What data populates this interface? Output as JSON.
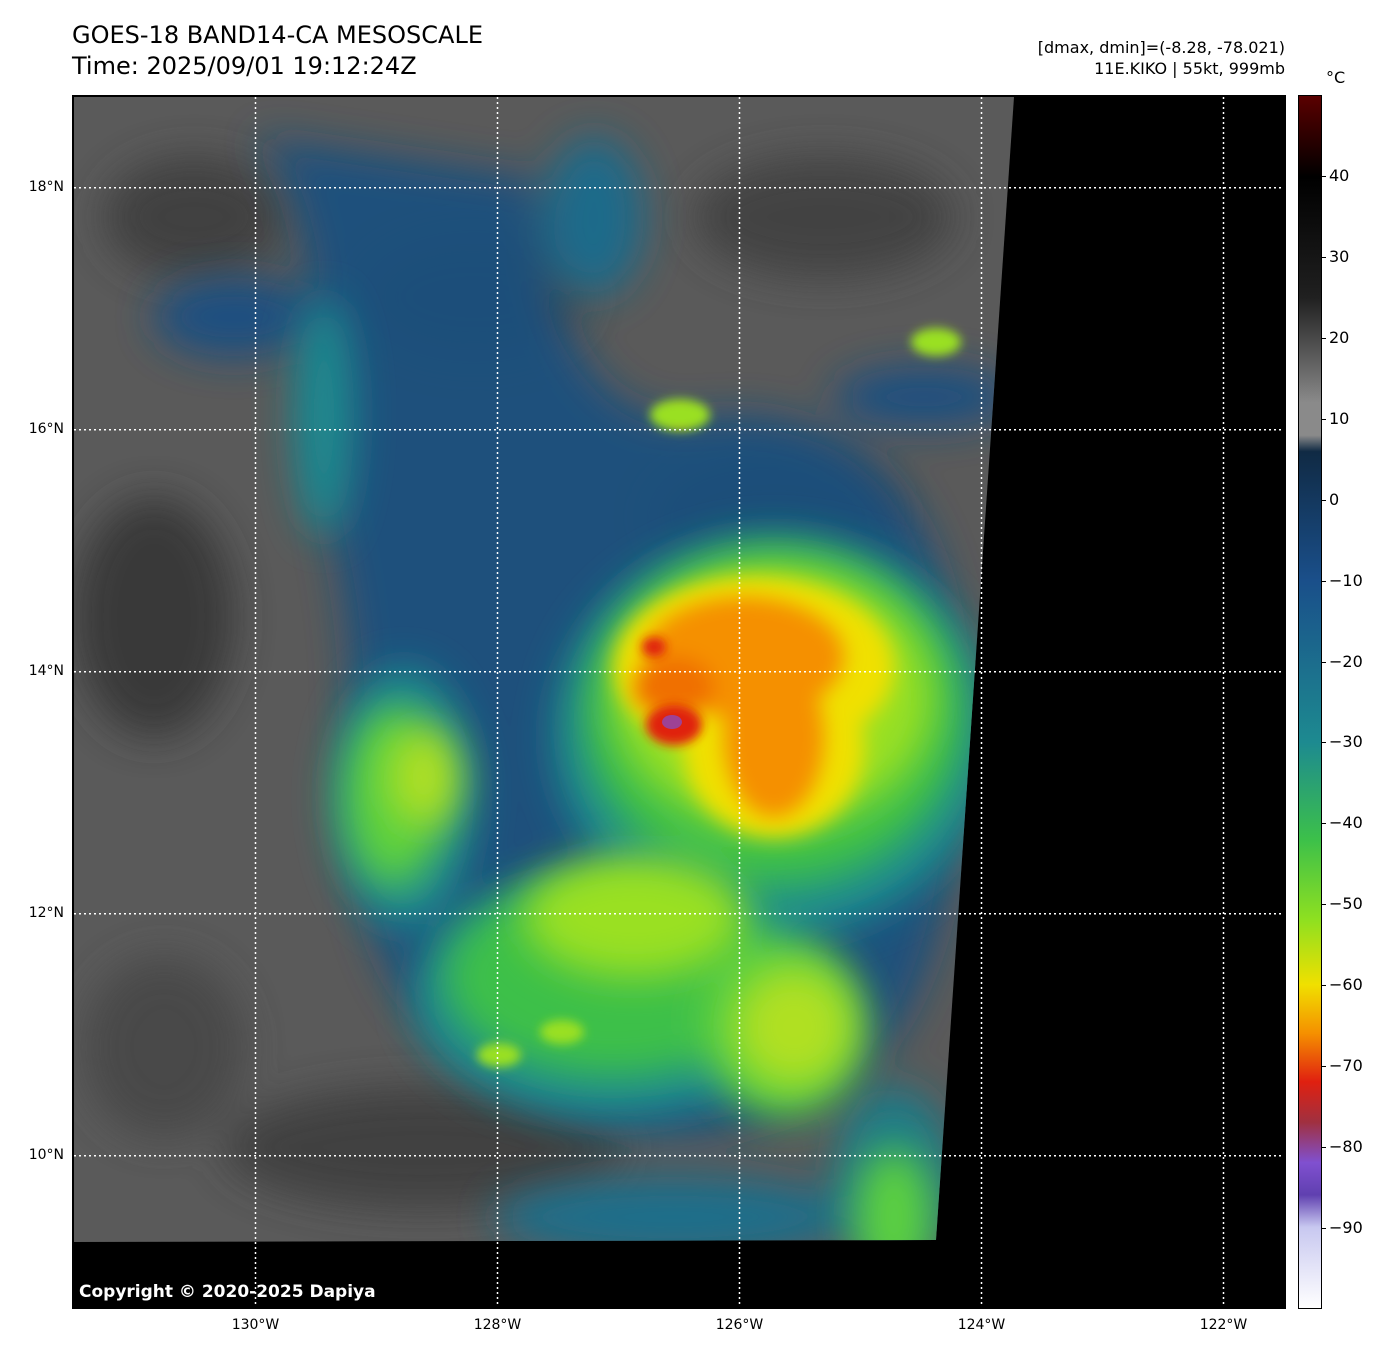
{
  "header": {
    "title_line1": "GOES-18 BAND14-CA MESOSCALE",
    "title_line2": "Time: 2025/09/01 19:12:24Z",
    "dmax_dmin": "[dmax, dmin]=(-8.28, -78.021)",
    "storm_info": "11E.KIKO | 55kt, 999mb"
  },
  "map": {
    "lat_range": [
      8.75,
      18.75
    ],
    "lon_range": [
      -131.5,
      -121.5
    ],
    "copyright": "Copyright © 2020-2025 Dapiya",
    "lat_labels": [
      {
        "value": 18,
        "text": "18°N"
      },
      {
        "value": 16,
        "text": "16°N"
      },
      {
        "value": 14,
        "text": "14°N"
      },
      {
        "value": 12,
        "text": "12°N"
      },
      {
        "value": 10,
        "text": "10°N"
      }
    ],
    "lon_labels": [
      {
        "value": -130,
        "text": "130°W"
      },
      {
        "value": -128,
        "text": "128°W"
      },
      {
        "value": -126,
        "text": "126°W"
      },
      {
        "value": -124,
        "text": "124°W"
      },
      {
        "value": -122,
        "text": "122°W"
      }
    ],
    "storm_center": {
      "lat": 13.6,
      "lon": -126.6
    }
  },
  "colorbar": {
    "unit": "°C",
    "range": [
      -100,
      50
    ],
    "ticks": [
      {
        "value": 40,
        "text": "40"
      },
      {
        "value": 30,
        "text": "30"
      },
      {
        "value": 20,
        "text": "20"
      },
      {
        "value": 10,
        "text": "10"
      },
      {
        "value": 0,
        "text": "0"
      },
      {
        "value": -10,
        "text": "−10"
      },
      {
        "value": -20,
        "text": "−20"
      },
      {
        "value": -30,
        "text": "−30"
      },
      {
        "value": -40,
        "text": "−40"
      },
      {
        "value": -50,
        "text": "−50"
      },
      {
        "value": -60,
        "text": "−60"
      },
      {
        "value": -70,
        "text": "−70"
      },
      {
        "value": -80,
        "text": "−80"
      },
      {
        "value": -90,
        "text": "−90"
      }
    ],
    "colors": {
      "warm_top": "#5a0000",
      "black": "#000000",
      "gray": "#8a8a8a",
      "navy": "#102a44",
      "blue": "#1a4f8a",
      "teal": "#1d8a90",
      "green": "#3cc04a",
      "lime": "#8fe020",
      "yellow": "#f0e000",
      "orange": "#f59000",
      "red": "#e02010",
      "purple": "#8050d0",
      "lavender": "#c8c8f0",
      "white": "#ffffff"
    }
  }
}
